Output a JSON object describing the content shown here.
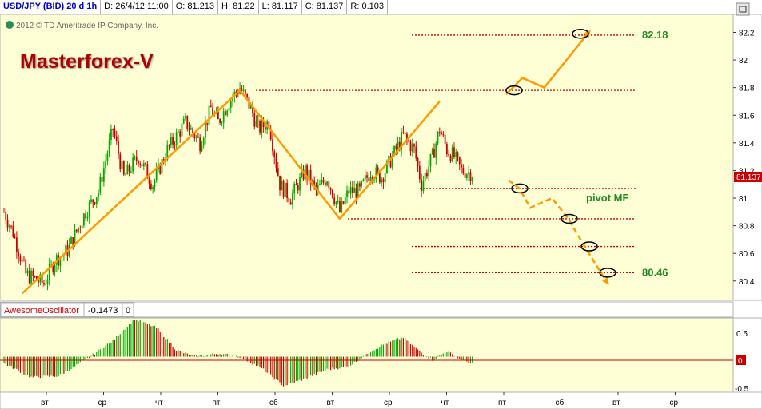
{
  "header": {
    "symbol": "USD/JPY (BID) 20 d 1h",
    "date": "D: 26/4/12 11:00",
    "open": "O: 81.213",
    "high": "H: 81.22",
    "low": "L: 81.117",
    "close": "C: 81.137",
    "range": "R: 0.103"
  },
  "copyright": "2012 © TD Ameritrade IP Company, Inc.",
  "brand_title": "Masterforex-V",
  "colors": {
    "background": "#ffffd5",
    "up_candle": "#00aa00",
    "down_candle": "#cc0000",
    "forecast": "#ff9900",
    "level_line": "#cc0000",
    "label_green": "#228b22",
    "price_badge": "#cc0000"
  },
  "chart_data": [
    {
      "type": "candlestick",
      "y_ticks": [
        "80.4",
        "80.6",
        "80.8",
        "81",
        "81.2",
        "81.4",
        "81.6",
        "81.8",
        "82",
        "82.2"
      ],
      "ylim": [
        80.26,
        82.33
      ],
      "last_price_label": "81.137",
      "x_ticks": [
        "вт",
        "ср",
        "чт",
        "пт",
        "сб",
        "вт",
        "ср",
        "чт",
        "пт",
        "сб",
        "вт",
        "ср"
      ],
      "price_path": [
        [
          0,
          80.9
        ],
        [
          5,
          80.75
        ],
        [
          12,
          80.45
        ],
        [
          22,
          80.38
        ],
        [
          28,
          80.55
        ],
        [
          35,
          80.62
        ],
        [
          45,
          80.9
        ],
        [
          52,
          81.05
        ],
        [
          60,
          81.5
        ],
        [
          66,
          81.15
        ],
        [
          74,
          81.3
        ],
        [
          82,
          81.1
        ],
        [
          90,
          81.35
        ],
        [
          100,
          81.55
        ],
        [
          108,
          81.4
        ],
        [
          114,
          81.65
        ],
        [
          118,
          81.55
        ],
        [
          124,
          81.7
        ],
        [
          130,
          81.8
        ],
        [
          136,
          81.65
        ],
        [
          140,
          81.5
        ],
        [
          146,
          81.55
        ],
        [
          152,
          81.1
        ],
        [
          158,
          81.0
        ],
        [
          166,
          81.2
        ],
        [
          172,
          81.05
        ],
        [
          178,
          81.15
        ],
        [
          185,
          80.9
        ],
        [
          190,
          81.05
        ],
        [
          196,
          81.05
        ],
        [
          202,
          81.2
        ],
        [
          208,
          81.15
        ],
        [
          214,
          81.3
        ],
        [
          220,
          81.45
        ],
        [
          226,
          81.35
        ],
        [
          230,
          81.1
        ],
        [
          236,
          81.3
        ],
        [
          240,
          81.5
        ],
        [
          244,
          81.35
        ],
        [
          248,
          81.3
        ],
        [
          252,
          81.2
        ],
        [
          258,
          81.18
        ]
      ],
      "zigzag": [
        [
          80.31,
          10
        ],
        [
          81.78,
          130
        ],
        [
          80.85,
          185
        ],
        [
          81.7,
          240
        ]
      ],
      "levels": [
        {
          "price": 82.18,
          "label": "82.18"
        },
        {
          "price": 81.78,
          "label": ""
        },
        {
          "price": 81.07,
          "label": "pivot MF"
        },
        {
          "price": 80.85,
          "label": ""
        },
        {
          "price": 80.65,
          "label": ""
        },
        {
          "price": 80.46,
          "label": "80.46"
        }
      ],
      "forecast_up": [
        [
          81.75,
          0
        ],
        [
          81.87,
          6
        ],
        [
          81.8,
          14
        ],
        [
          82.19,
          30
        ]
      ],
      "forecast_down": [
        [
          81.13,
          0
        ],
        [
          81.07,
          4
        ],
        [
          80.93,
          8
        ],
        [
          81.0,
          16
        ],
        [
          80.85,
          22
        ],
        [
          80.65,
          28
        ],
        [
          80.46,
          34
        ],
        [
          80.4,
          36
        ]
      ]
    },
    {
      "type": "bar",
      "name": "AwesomeOscillator",
      "value_label": "-0.1473",
      "param_label": "0",
      "y_ticks": [
        "0.5",
        "-0.5"
      ],
      "zero_label": "0",
      "ylim": [
        -0.55,
        0.6
      ],
      "oscillator_path": [
        [
          0,
          -0.1
        ],
        [
          15,
          -0.32
        ],
        [
          30,
          -0.3
        ],
        [
          45,
          -0.05
        ],
        [
          60,
          0.25
        ],
        [
          72,
          0.58
        ],
        [
          84,
          0.45
        ],
        [
          95,
          0.1
        ],
        [
          105,
          0.0
        ],
        [
          118,
          0.05
        ],
        [
          130,
          0.0
        ],
        [
          142,
          -0.18
        ],
        [
          154,
          -0.45
        ],
        [
          165,
          -0.35
        ],
        [
          178,
          -0.2
        ],
        [
          190,
          -0.15
        ],
        [
          200,
          0.05
        ],
        [
          210,
          0.2
        ],
        [
          220,
          0.3
        ],
        [
          228,
          0.1
        ],
        [
          236,
          -0.05
        ],
        [
          244,
          0.08
        ],
        [
          252,
          -0.05
        ],
        [
          258,
          -0.1
        ]
      ]
    }
  ]
}
